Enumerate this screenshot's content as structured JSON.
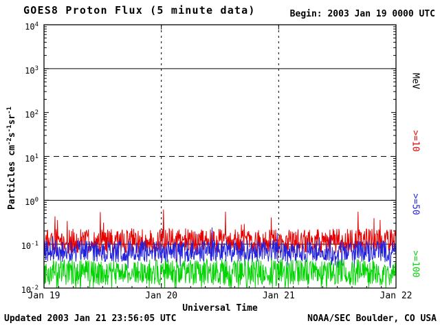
{
  "header": {
    "title": "GOES8 Proton Flux (5 minute data)",
    "begin_label": "Begin: 2003 Jan 19 0000 UTC"
  },
  "footer": {
    "updated": "Updated 2003 Jan 21 23:56:05 UTC",
    "credit": "NOAA/SEC Boulder, CO USA"
  },
  "chart_data": {
    "type": "line",
    "title": "GOES8 Proton Flux (5 minute data)",
    "xlabel": "Universal Time",
    "ylabel": "Particles cm-2 s-1 sr-1",
    "ylabel_parts": [
      {
        "t": "Particles cm"
      },
      {
        "s": "-2"
      },
      {
        "t": "s"
      },
      {
        "s": "-1"
      },
      {
        "t": "sr"
      },
      {
        "s": "-1"
      }
    ],
    "right_axis_title": "MeV",
    "x_tick_labels": [
      "Jan 19",
      "Jan 20",
      "Jan 21",
      "Jan 22"
    ],
    "x_range_days": [
      0,
      3
    ],
    "y_tick_exponents": [
      4,
      3,
      2,
      1,
      0,
      -1,
      -2
    ],
    "ylog_range": [
      -2,
      4
    ],
    "ylim": [
      0.01,
      10000
    ],
    "grid": {
      "hlines": [
        {
          "log10": 3,
          "style": "solid"
        },
        {
          "log10": 1,
          "style": "dashed"
        },
        {
          "log10": 0,
          "style": "solid"
        },
        {
          "log10": -1,
          "style": "solid"
        }
      ],
      "vlines_day": [
        1,
        2
      ]
    },
    "n_points": 864,
    "series": [
      {
        "name": ">=10 MeV",
        "legend": ">=10",
        "color": "#e60000",
        "log10_mean": -0.93,
        "log10_jitter": 0.28,
        "spike_prob": 0.035,
        "spike_max": 0.55,
        "down_spike_prob": 0.03,
        "down_spike_max": 0.25,
        "log10_cap": -0.2,
        "seed": 20031
      },
      {
        "name": ">=50 MeV",
        "legend": ">=50",
        "color": "#2222dd",
        "log10_mean": -1.16,
        "log10_jitter": 0.25,
        "spike_prob": 0.02,
        "spike_max": 0.42,
        "down_spike_prob": 0.05,
        "down_spike_max": 0.3,
        "log10_cap": -0.62,
        "seed": 20032
      },
      {
        "name": ">=100 MeV",
        "legend": ">=100",
        "color": "#00d400",
        "log10_mean": -1.64,
        "log10_jitter": 0.3,
        "spike_prob": 0.015,
        "spike_max": 0.3,
        "down_spike_prob": 0.09,
        "down_spike_max": 0.38,
        "log10_cap": -1.18,
        "seed": 20033
      }
    ]
  }
}
